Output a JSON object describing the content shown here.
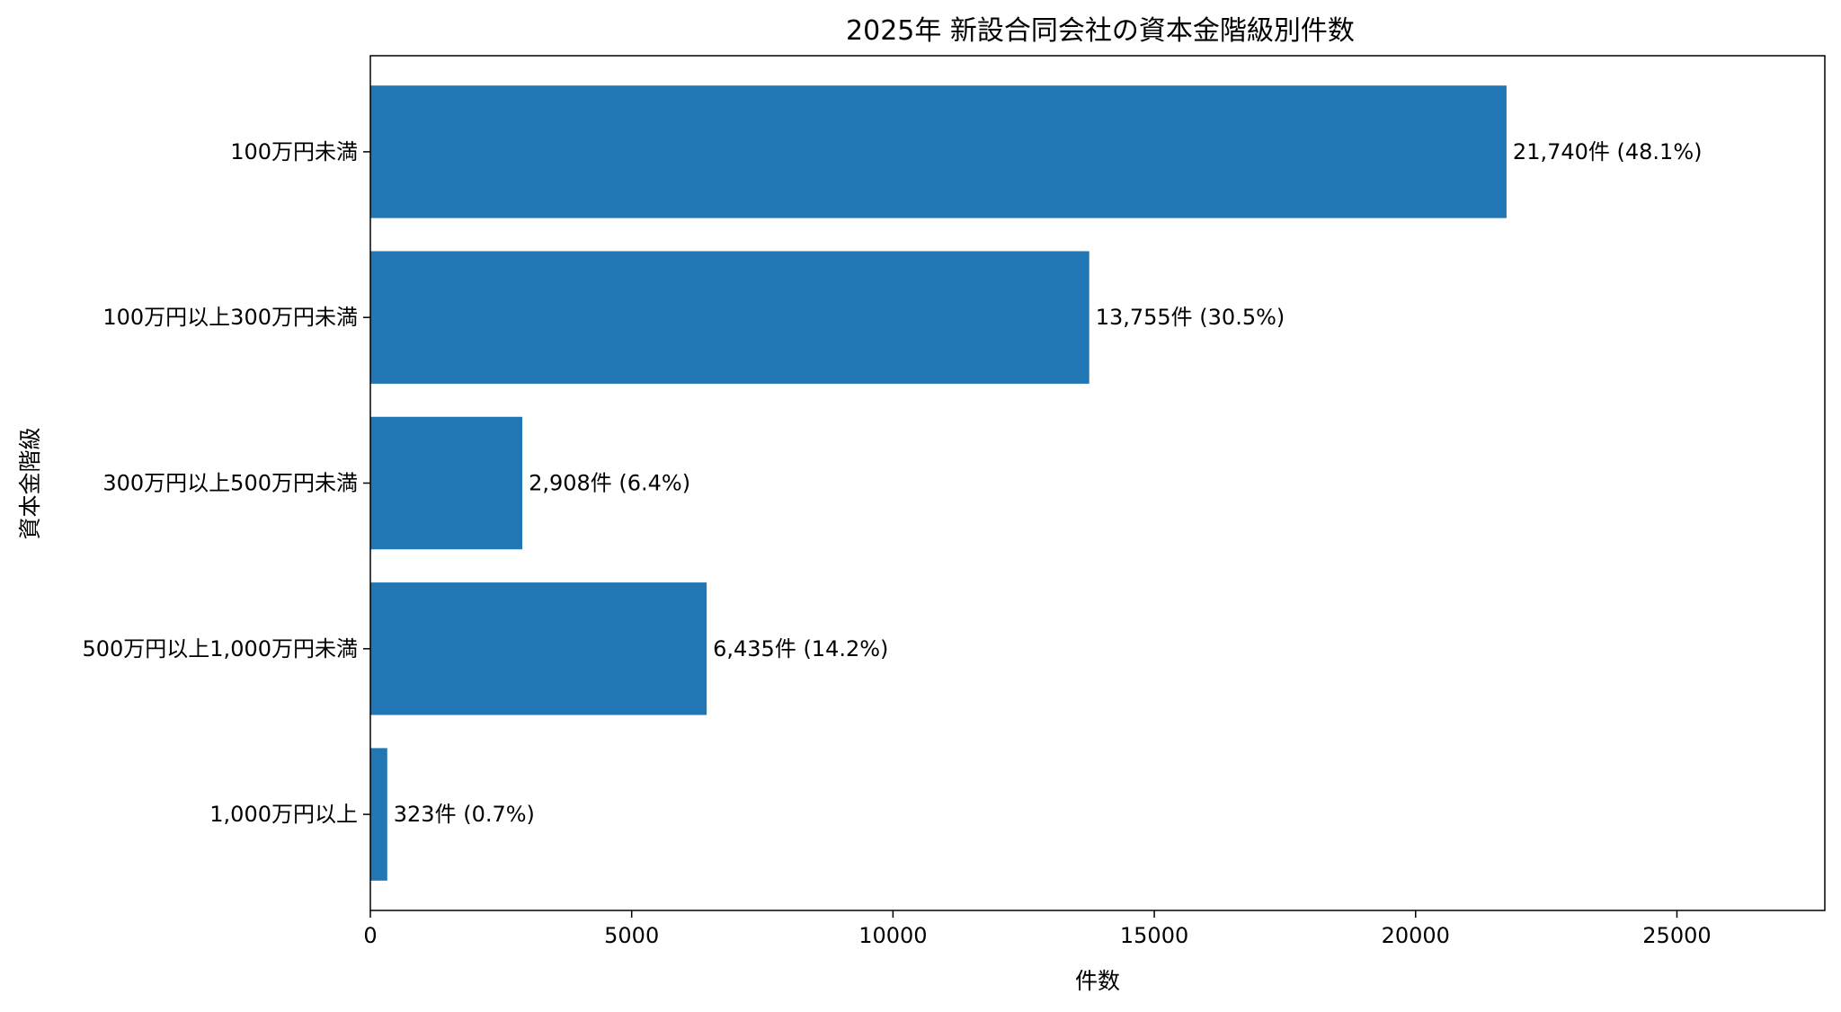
{
  "chart_data": {
    "type": "bar",
    "orientation": "horizontal",
    "title": "2025年 新設合同会社の資本金階級別件数",
    "xlabel": "件数",
    "ylabel": "資本金階級",
    "categories": [
      "100万円未満",
      "100万円以上300万円未満",
      "300万円以上500万円未満",
      "500万円以上1,000万円未満",
      "1,000万円以上"
    ],
    "values": [
      21740,
      13755,
      2908,
      6435,
      323
    ],
    "data_labels": [
      "21,740件 (48.1%)",
      "13,755件 (30.5%)",
      "2,908件 (6.4%)",
      "6,435件 (14.2%)",
      "323件 (0.7%)"
    ],
    "xlim": [
      0,
      27830
    ],
    "xticks": [
      0,
      5000,
      10000,
      15000,
      20000,
      25000
    ],
    "xtick_labels": [
      "0",
      "5000",
      "10000",
      "15000",
      "20000",
      "25000"
    ],
    "grid": false,
    "bar_color": "#2077b4"
  }
}
